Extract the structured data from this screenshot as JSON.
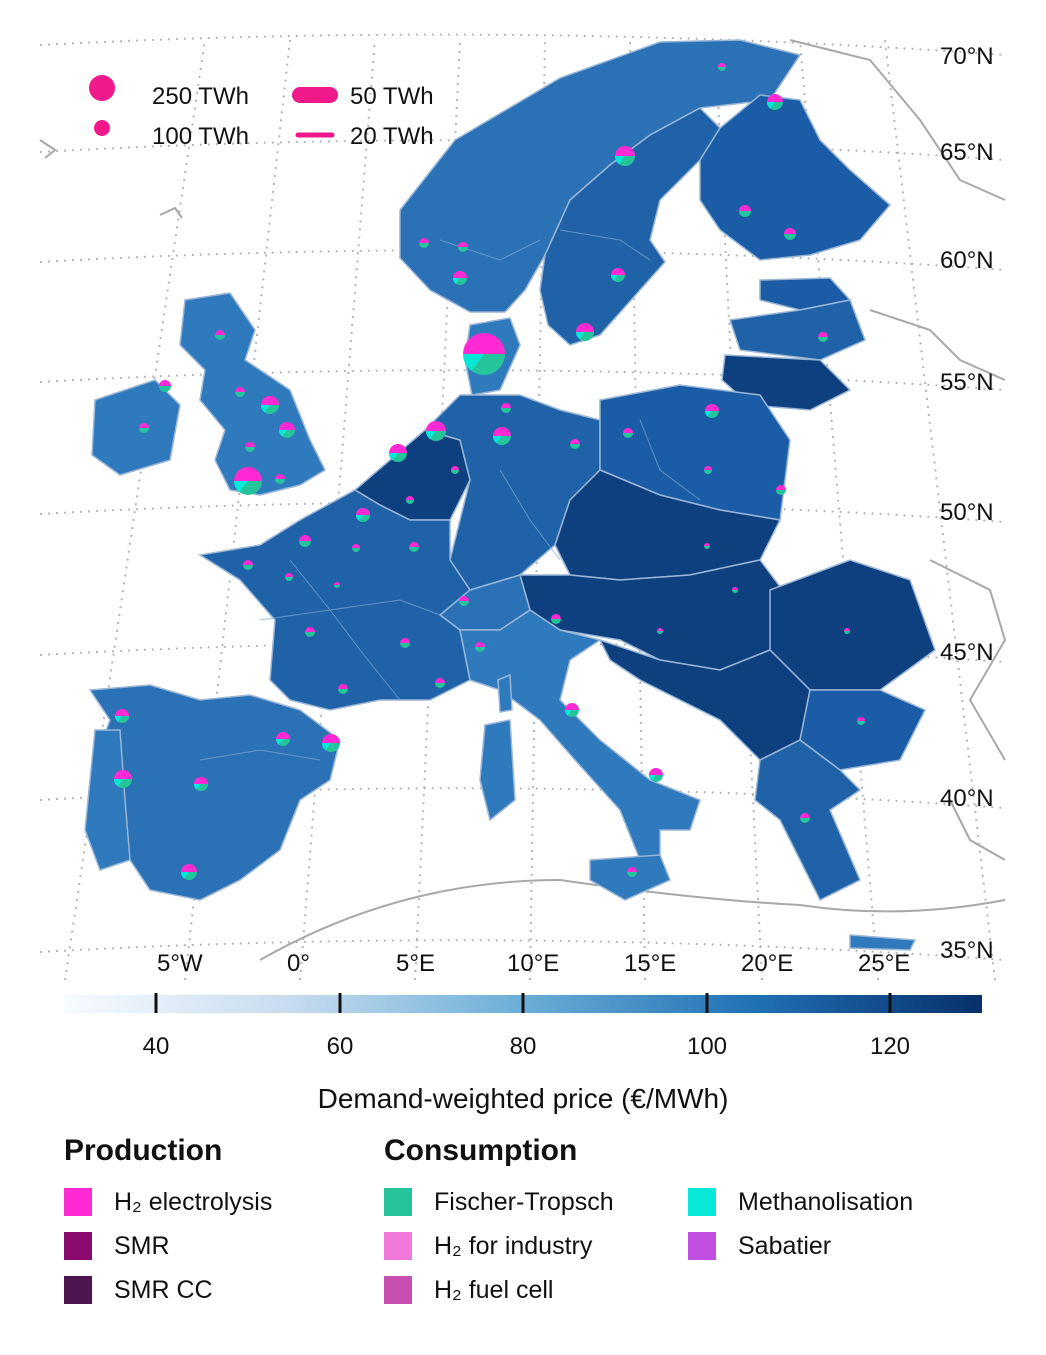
{
  "map": {
    "lat_labels": [
      "70°N",
      "65°N",
      "60°N",
      "55°N",
      "50°N",
      "45°N",
      "40°N",
      "35°N"
    ],
    "lon_labels": [
      "5°W",
      "0°",
      "5°E",
      "10°E",
      "15°E",
      "20°E",
      "25°E"
    ]
  },
  "size_legend": {
    "circle_large": "250 TWh",
    "circle_small": "100 TWh",
    "line_thick": "50 TWh",
    "line_thin": "20 TWh",
    "color": "#f0198c"
  },
  "colorbar": {
    "ticks": [
      "40",
      "60",
      "80",
      "100",
      "120"
    ],
    "range": [
      30,
      130
    ],
    "title": "Demand-weighted price (€/MWh)",
    "colors": [
      "#f7fbff",
      "#c6dbef",
      "#6baed6",
      "#2171b5",
      "#08306b"
    ]
  },
  "legend": {
    "production_title": "Production",
    "consumption_title": "Consumption",
    "production": [
      {
        "label": "H₂ electrolysis",
        "color": "#ff2ad4"
      },
      {
        "label": "SMR",
        "color": "#8b0a6e"
      },
      {
        "label": "SMR CC",
        "color": "#4e1650"
      }
    ],
    "consumption_col1": [
      {
        "label": "Fischer-Tropsch",
        "color": "#25c49a"
      },
      {
        "label": "H₂ for industry",
        "color": "#ef78d8"
      },
      {
        "label": "H₂ fuel cell",
        "color": "#c64fb0"
      }
    ],
    "consumption_col2": [
      {
        "label": "Methanolisation",
        "color": "#08e8d8"
      },
      {
        "label": "Sabatier",
        "color": "#c04ee0"
      }
    ]
  }
}
